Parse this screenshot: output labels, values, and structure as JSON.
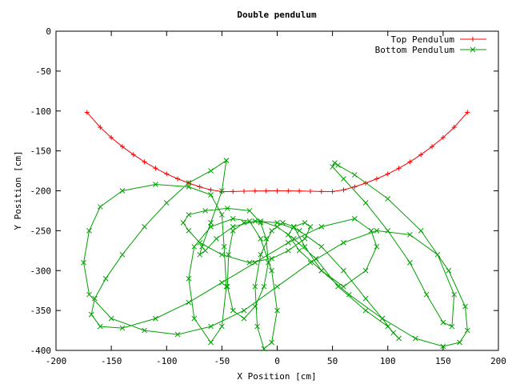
{
  "chart_data": {
    "type": "scatter",
    "title": "Double pendulum",
    "xlabel": "X Position [cm]",
    "ylabel": "Y Position [cm]",
    "xlim": [
      -200,
      200
    ],
    "ylim": [
      -400,
      0
    ],
    "xticks": [
      -200,
      -150,
      -100,
      -50,
      0,
      50,
      100,
      150,
      200
    ],
    "yticks": [
      0,
      -50,
      -100,
      -150,
      -200,
      -250,
      -300,
      -350,
      -400
    ],
    "grid": false,
    "legend_position": "top-right",
    "series": [
      {
        "name": "Top Pendulum",
        "color": "#ff0000",
        "marker": "plus",
        "x": [
          -172,
          -160,
          -150,
          -140,
          -130,
          -120,
          -110,
          -100,
          -90,
          -80,
          -70,
          -60,
          -50,
          -40,
          -30,
          -20,
          -10,
          0,
          10,
          20,
          30,
          40,
          50,
          60,
          70,
          80,
          90,
          100,
          110,
          120,
          130,
          140,
          150,
          160,
          172
        ],
        "y": [
          -101.7,
          -120.4,
          -133.3,
          -144.6,
          -154.7,
          -163.7,
          -171.7,
          -178.8,
          -185,
          -190.4,
          -195,
          -198.9,
          -201,
          -200.9,
          -200.5,
          -200.2,
          -200.1,
          -200,
          -200.1,
          -200.2,
          -200.5,
          -200.9,
          -201,
          -198.9,
          -195,
          -190.4,
          -185,
          -178.8,
          -171.7,
          -163.7,
          -154.7,
          -144.6,
          -133.3,
          -120.4,
          -101.7
        ]
      },
      {
        "name": "Bottom Pendulum",
        "color": "#00a000",
        "marker": "cross",
        "x": [
          -46,
          -60,
          -80,
          -100,
          -120,
          -140,
          -155,
          -165,
          -168,
          -160,
          -140,
          -110,
          -80,
          -50,
          -20,
          10,
          40,
          70,
          85,
          90,
          80,
          60,
          40,
          25,
          15,
          5,
          -5,
          -15,
          -20,
          -18,
          -12,
          -5,
          0,
          -5,
          -15,
          -25,
          -40,
          -60,
          -75,
          -80,
          -75,
          -60,
          -50,
          -46,
          -48,
          -50,
          -60,
          -80,
          -110,
          -140,
          -160,
          -170,
          -175,
          -170,
          -150,
          -120,
          -90,
          -60,
          -30,
          0,
          30,
          60,
          90,
          120,
          145,
          160,
          158,
          150,
          135,
          120,
          100,
          80,
          60,
          50,
          52,
          55,
          70,
          100,
          130,
          155,
          170,
          172,
          165,
          150,
          125,
          95,
          65,
          40,
          20,
          10,
          15,
          25,
          30,
          25,
          10,
          -5,
          -25,
          -50,
          -70,
          -80,
          -85,
          -80,
          -65,
          -45,
          -25,
          -15,
          -10,
          -8,
          -12,
          -20,
          -30,
          -40,
          -45,
          -44,
          -40,
          -30,
          -15,
          0,
          15,
          35,
          55,
          80,
          100,
          110,
          105,
          95,
          80,
          60,
          40,
          20,
          0,
          -20,
          -40,
          -55,
          -65,
          -70,
          -68,
          -60,
          -50,
          -46
        ],
        "y": [
          -162,
          -175,
          -190,
          -215,
          -245,
          -280,
          -310,
          -335,
          -355,
          -370,
          -372,
          -360,
          -340,
          -315,
          -290,
          -265,
          -245,
          -235,
          -250,
          -270,
          -300,
          -320,
          -300,
          -270,
          -245,
          -240,
          -250,
          -280,
          -320,
          -370,
          -398,
          -390,
          -350,
          -300,
          -260,
          -238,
          -235,
          -245,
          -270,
          -310,
          -360,
          -390,
          -370,
          -320,
          -270,
          -230,
          -205,
          -195,
          -192,
          -200,
          -220,
          -250,
          -290,
          -330,
          -360,
          -375,
          -380,
          -370,
          -350,
          -320,
          -290,
          -265,
          -250,
          -255,
          -280,
          -330,
          -370,
          -365,
          -330,
          -290,
          -250,
          -215,
          -185,
          -170,
          -165,
          -168,
          -180,
          -210,
          -250,
          -300,
          -345,
          -375,
          -390,
          -395,
          -385,
          -360,
          -330,
          -300,
          -275,
          -255,
          -245,
          -240,
          -245,
          -260,
          -275,
          -285,
          -290,
          -280,
          -265,
          -250,
          -240,
          -230,
          -225,
          -222,
          -225,
          -240,
          -260,
          -290,
          -320,
          -345,
          -360,
          -350,
          -320,
          -280,
          -250,
          -240,
          -238,
          -245,
          -260,
          -285,
          -320,
          -350,
          -370,
          -385,
          -378,
          -360,
          -335,
          -300,
          -270,
          -250,
          -240,
          -238,
          -245,
          -260,
          -275,
          -280,
          -270,
          -240,
          -200,
          -162
        ]
      }
    ]
  }
}
